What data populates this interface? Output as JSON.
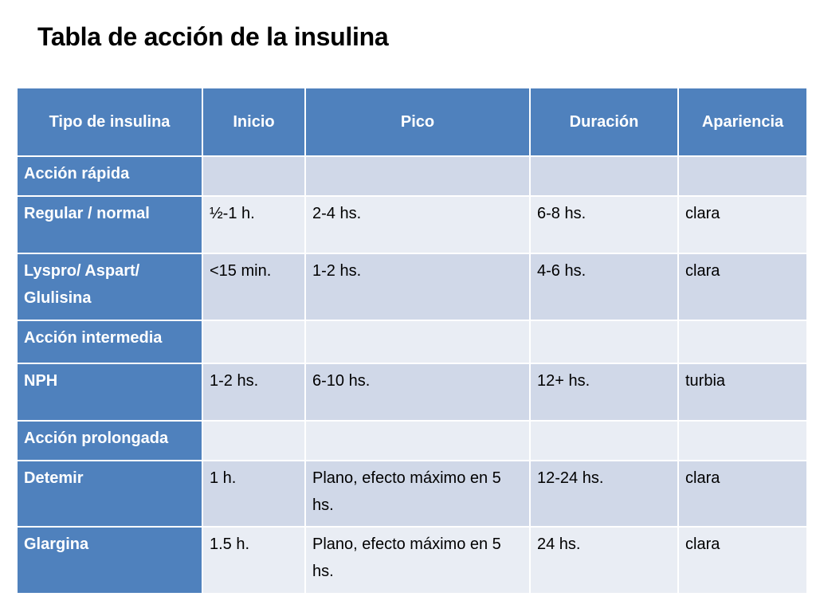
{
  "slide": {
    "title": "Tabla de acción de la insulina"
  },
  "table": {
    "headers": [
      "Tipo de insulina",
      "Inicio",
      "Pico",
      "Duración",
      "Apariencia"
    ],
    "rows": [
      {
        "cells": [
          "Acción rápida",
          "",
          "",
          "",
          ""
        ]
      },
      {
        "cells": [
          "Regular / normal",
          "½-1 h.",
          "2-4 hs.",
          "6-8 hs.",
          "clara"
        ]
      },
      {
        "cells": [
          "Lyspro/ Aspart/ Glulisina",
          "<15 min.",
          "1-2 hs.",
          "4-6 hs.",
          "clara"
        ]
      },
      {
        "cells": [
          "Acción intermedia",
          "",
          "",
          "",
          ""
        ]
      },
      {
        "cells": [
          "NPH",
          "1-2 hs.",
          "6-10 hs.",
          "12+ hs.",
          "turbia"
        ]
      },
      {
        "cells": [
          "Acción prolongada",
          "",
          "",
          "",
          ""
        ]
      },
      {
        "cells": [
          "Detemir",
          "1 h.",
          "Plano, efecto máximo en 5 hs.",
          "12-24 hs.",
          "clara"
        ]
      },
      {
        "cells": [
          "Glargina",
          "1.5 h.",
          "Plano, efecto máximo en 5 hs.",
          "24 hs.",
          "clara"
        ]
      }
    ]
  },
  "colors": {
    "header_blue": "#4f81bd",
    "row_dark": "#d0d8e8",
    "row_light": "#e9edf4"
  }
}
